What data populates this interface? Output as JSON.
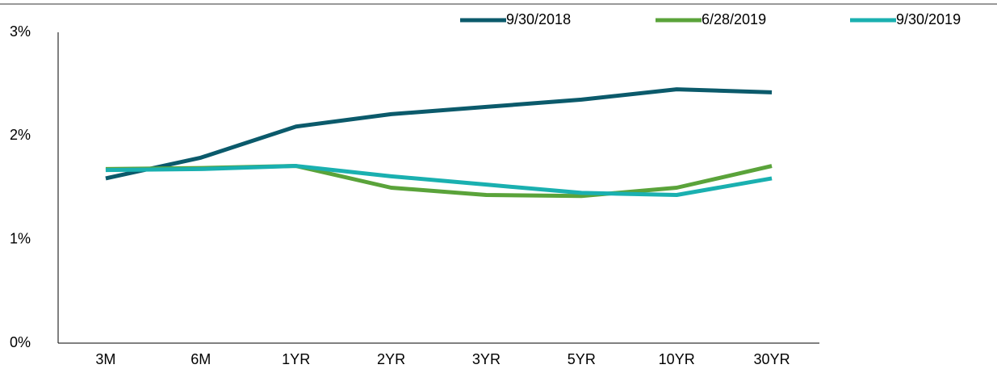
{
  "chart_data": {
    "type": "line",
    "categories": [
      "3M",
      "6M",
      "1YR",
      "2YR",
      "3YR",
      "5YR",
      "10YR",
      "30YR"
    ],
    "series": [
      {
        "name": "9/30/2018",
        "color": "#0b5a6b",
        "values": [
          1.59,
          1.79,
          2.09,
          2.21,
          2.28,
          2.35,
          2.45,
          2.42
        ]
      },
      {
        "name": "6/28/2019",
        "color": "#5aa33a",
        "values": [
          1.68,
          1.69,
          1.71,
          1.5,
          1.43,
          1.42,
          1.5,
          1.71
        ]
      },
      {
        "name": "9/30/2019",
        "color": "#1ab0b0",
        "values": [
          1.67,
          1.68,
          1.71,
          1.61,
          1.53,
          1.45,
          1.43,
          1.59
        ]
      }
    ],
    "ylim": [
      0,
      3
    ],
    "yticks": [
      {
        "value": 0,
        "label": "0%"
      },
      {
        "value": 1,
        "label": "1%"
      },
      {
        "value": 2,
        "label": "2%"
      },
      {
        "value": 3,
        "label": "3%"
      }
    ],
    "grid": false
  }
}
